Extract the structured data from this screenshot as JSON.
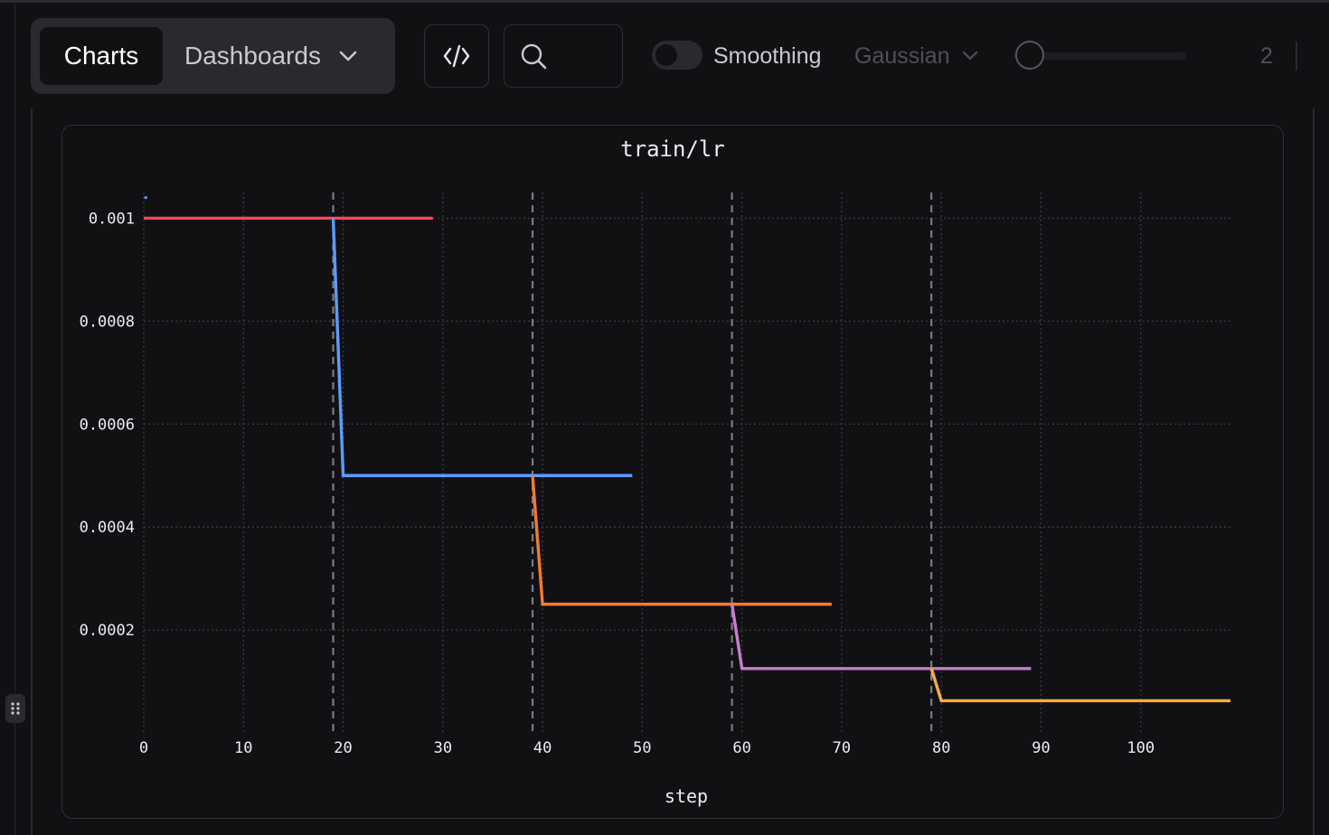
{
  "toolbar": {
    "tabs": [
      {
        "label": "Charts",
        "active": true
      },
      {
        "label": "Dashboards",
        "active": false
      }
    ],
    "code_button_icon": "code-icon",
    "search_icon": "search-icon",
    "smoothing": {
      "label": "Smoothing",
      "enabled": false,
      "method": "Gaussian",
      "value": "2"
    }
  },
  "chart_data": {
    "type": "line",
    "title": "train/lr",
    "xlabel": "step",
    "ylabel": "",
    "xlim": [
      0,
      109
    ],
    "ylim": [
      0,
      0.00105
    ],
    "x_ticks": [
      0,
      10,
      20,
      30,
      40,
      50,
      60,
      70,
      80,
      90,
      100
    ],
    "y_ticks": [
      0.0002,
      0.0004,
      0.0006,
      0.0008,
      0.001
    ],
    "y_tick_labels": [
      "0.0002",
      "0.0004",
      "0.0006",
      "0.0008",
      "0.001"
    ],
    "grid": true,
    "vertical_markers": [
      19,
      39,
      59,
      79
    ],
    "series": [
      {
        "color": "#ef4a5a",
        "x": [
          0,
          29
        ],
        "y": [
          0.001,
          0.001
        ]
      },
      {
        "color": "#5b9dff",
        "x": [
          19,
          20,
          49
        ],
        "y": [
          0.001,
          0.0005,
          0.0005
        ]
      },
      {
        "color": "#f07a35",
        "x": [
          39,
          40,
          69
        ],
        "y": [
          0.0005,
          0.00025,
          0.00025
        ]
      },
      {
        "color": "#c97bd0",
        "x": [
          59,
          60,
          89
        ],
        "y": [
          0.00025,
          0.000125,
          0.000125
        ]
      },
      {
        "color": "#f6ad3d",
        "x": [
          79,
          80,
          109
        ],
        "y": [
          0.000125,
          6.25e-05,
          6.25e-05
        ]
      }
    ],
    "extra_points": [
      {
        "color": "#5b9dff",
        "x": 0.2,
        "y": 0.00104
      }
    ]
  }
}
